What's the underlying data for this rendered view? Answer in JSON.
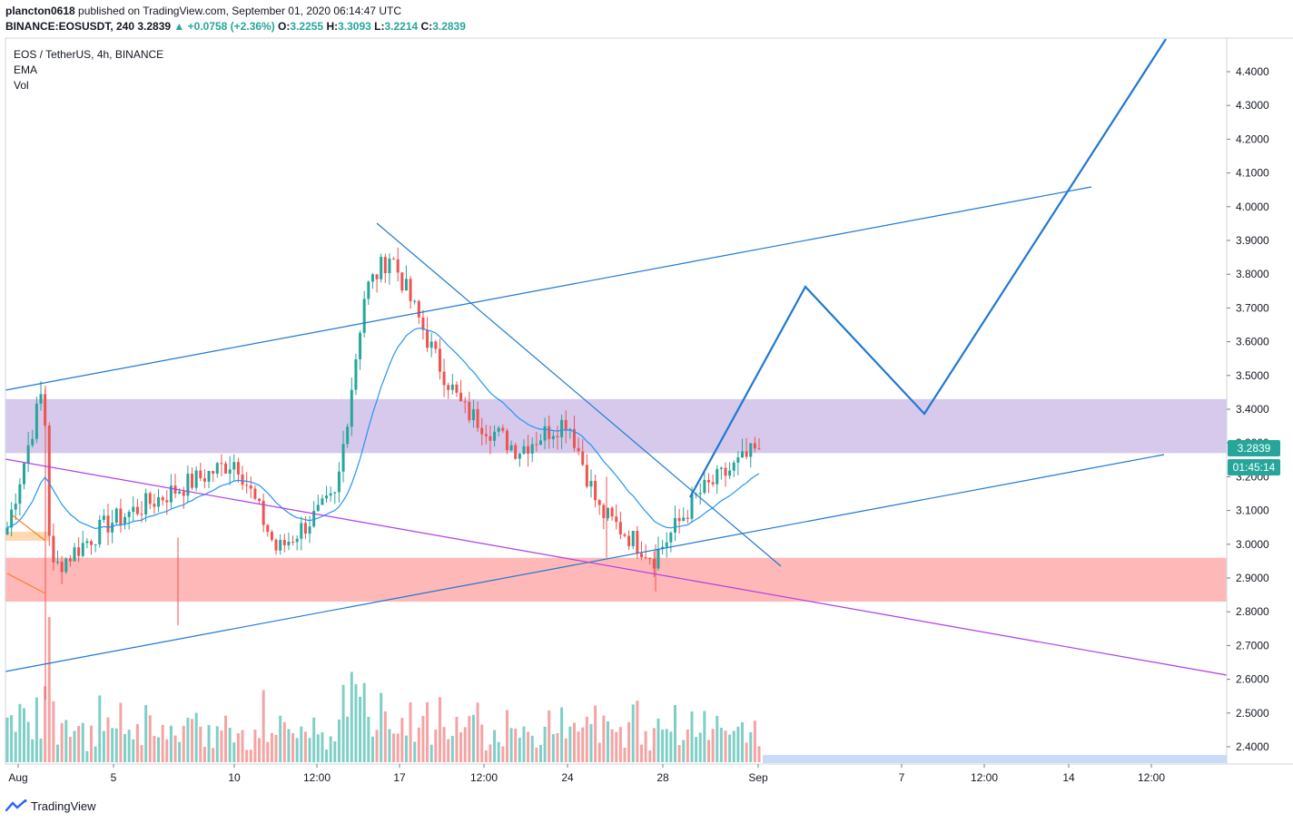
{
  "header": {
    "publisher": "plancton0618",
    "published_text": "published on TradingView.com, September 01, 2020 06:14:47 UTC",
    "symbol": "BINANCE:EOSUSDT, 240",
    "last": "3.2839",
    "change": "▲ +0.0758 (+2.36%)",
    "o_label": "O:",
    "o": "3.2255",
    "h_label": "H:",
    "h": "3.3093",
    "l_label": "L:",
    "l": "3.2214",
    "c_label": "C:",
    "c": "3.2839"
  },
  "legend": {
    "title": "EOS / TetherUS, 4h, BINANCE",
    "ema": "EMA",
    "vol": "Vol"
  },
  "price_tags": {
    "last_price": "3.2839",
    "countdown": "01:45:14"
  },
  "footer": {
    "brand": "TradingView"
  },
  "colors": {
    "up": "#26a69a",
    "down": "#ef5350",
    "up_vol": "#7fcfc7",
    "down_vol": "#f5a3a3",
    "ema": "#2196f3",
    "trend": "#1e78d2",
    "purple_line": "#b13ce6",
    "resistance_zone": "#d6c9ec",
    "support_zone": "#ffb8b8",
    "price_tag": "#26a69a",
    "countdown_tag": "#26a69a"
  },
  "chart_data": {
    "type": "candlestick",
    "title": "EOS / TetherUS, 4h, BINANCE",
    "ylim": [
      2.34,
      4.48
    ],
    "y_ticks": [
      "4.4000",
      "4.3000",
      "4.2000",
      "4.1000",
      "4.0000",
      "3.9000",
      "3.8000",
      "3.7000",
      "3.6000",
      "3.5000",
      "3.4000",
      "3.3000",
      "3.2000",
      "3.1000",
      "3.0000",
      "2.9000",
      "2.8000",
      "2.7000",
      "2.6000",
      "2.5000",
      "2.4000"
    ],
    "x_ticks": [
      "Aug",
      "5",
      "10",
      "12:00",
      "17",
      "12:00",
      "24",
      "28",
      "Sep",
      "7",
      "12:00",
      "14",
      "12:00"
    ],
    "last_price": 3.2839,
    "zones": [
      {
        "name": "resistance",
        "from": 3.27,
        "to": 3.43
      },
      {
        "name": "support",
        "from": 2.83,
        "to": 2.96
      }
    ],
    "ohlc_keypoints": [
      [
        "Aug",
        3.05
      ],
      [
        "Aug-02",
        3.47
      ],
      [
        "Aug-03",
        2.92
      ],
      [
        "5",
        3.06
      ],
      [
        "Aug-08",
        3.13
      ],
      [
        "10",
        3.25
      ],
      [
        "Aug-12",
        2.98
      ],
      [
        "12:00",
        3.14
      ],
      [
        "Aug-15",
        3.75
      ],
      [
        "17",
        3.86
      ],
      [
        "Aug-19",
        3.55
      ],
      [
        "12:00",
        3.4
      ],
      [
        "Aug-22",
        3.28
      ],
      [
        "24",
        3.37
      ],
      [
        "Aug-26",
        3.1
      ],
      [
        "28",
        2.96
      ],
      [
        "Aug-30",
        3.15
      ],
      [
        "Sep",
        3.2839
      ]
    ],
    "projection_path": [
      3.2,
      3.77,
      3.39,
      4.48
    ]
  }
}
